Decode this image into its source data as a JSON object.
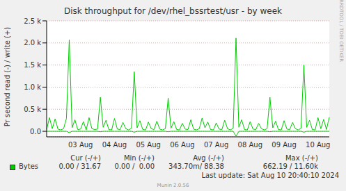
{
  "chart_data": {
    "type": "line",
    "title": "Disk throughput for /dev/rhel_bssrtest/usr - by week",
    "y_label": "Pr second read (-) / write (+)",
    "categories": [
      null,
      null,
      null,
      null,
      null,
      null,
      null,
      null,
      null,
      null,
      null,
      null,
      "03 Aug",
      null,
      null,
      null,
      null,
      null,
      null,
      null,
      null,
      null,
      null,
      null,
      "04 Aug",
      null,
      null,
      null,
      null,
      null,
      null,
      null,
      null,
      null,
      null,
      null,
      "05 Aug",
      null,
      null,
      null,
      null,
      null,
      null,
      null,
      null,
      null,
      null,
      null,
      "06 Aug",
      null,
      null,
      null,
      null,
      null,
      null,
      null,
      null,
      null,
      null,
      null,
      "07 Aug",
      null,
      null,
      null,
      null,
      null,
      null,
      null,
      null,
      null,
      null,
      null,
      "08 Aug",
      null,
      null,
      null,
      null,
      null,
      null,
      null,
      null,
      null,
      null,
      null,
      "09 Aug",
      null,
      null,
      null,
      null,
      null,
      null,
      null,
      null,
      null,
      null,
      null,
      "10 Aug",
      null,
      null,
      null,
      null
    ],
    "series": [
      {
        "name": "Bytes",
        "color": "#00cc00",
        "values": [
          40,
          310,
          60,
          280,
          50,
          30,
          60,
          290,
          2070,
          80,
          260,
          40,
          50,
          220,
          30,
          310,
          60,
          40,
          50,
          770,
          90,
          250,
          40,
          30,
          290,
          50,
          40,
          200,
          60,
          30,
          70,
          1350,
          80,
          240,
          40,
          30,
          210,
          60,
          40,
          230,
          50,
          30,
          60,
          750,
          70,
          220,
          40,
          30,
          180,
          50,
          40,
          260,
          50,
          30,
          60,
          300,
          80,
          210,
          40,
          30,
          190,
          50,
          40,
          250,
          60,
          30,
          70,
          2110,
          90,
          260,
          40,
          30,
          220,
          50,
          40,
          180,
          60,
          30,
          60,
          770,
          80,
          230,
          40,
          30,
          240,
          50,
          40,
          200,
          60,
          30,
          70,
          1500,
          90,
          250,
          40,
          30,
          310,
          60,
          270,
          40,
          320
        ],
        "read": [
          0,
          0,
          0,
          0,
          0,
          0,
          0,
          0,
          -30,
          0,
          0,
          0,
          0,
          0,
          0,
          0,
          0,
          0,
          0,
          -10,
          0,
          0,
          0,
          0,
          0,
          0,
          0,
          0,
          0,
          0,
          0,
          -20,
          0,
          0,
          0,
          0,
          0,
          0,
          0,
          0,
          0,
          0,
          0,
          -10,
          0,
          0,
          0,
          0,
          0,
          0,
          0,
          0,
          0,
          0,
          0,
          0,
          0,
          0,
          0,
          0,
          0,
          0,
          0,
          0,
          0,
          0,
          0,
          -110,
          0,
          0,
          0,
          0,
          0,
          0,
          0,
          0,
          0,
          0,
          0,
          -10,
          0,
          0,
          0,
          0,
          0,
          0,
          0,
          0,
          0,
          0,
          0,
          -20,
          0,
          0,
          0,
          0,
          0,
          0,
          0,
          0,
          0
        ]
      }
    ],
    "ylim": [
      -125,
      2500
    ],
    "yticks": [
      {
        "value": 0,
        "label": "0.0"
      },
      {
        "value": 500,
        "label": "0.5 k"
      },
      {
        "value": 1000,
        "label": "1.0 k"
      },
      {
        "value": 1500,
        "label": "1.5 k"
      },
      {
        "value": 2000,
        "label": "2.0 k"
      },
      {
        "value": 2500,
        "label": "2.5 k"
      }
    ],
    "grid": true,
    "stats": {
      "headers": [
        "Cur (-/+)",
        "Min (-/+)",
        "Avg (-/+)",
        "Max (-/+)"
      ],
      "rows": [
        {
          "label": "Bytes",
          "color": "#00cc00",
          "values": [
            "0.00 / 31.67",
            "0.00 /  0.00",
            "343.70m/ 88.38",
            "662.19 / 11.60k"
          ]
        }
      ]
    },
    "last_update": "Last update: Sat Aug 10 20:40:10 2024",
    "version": "Munin 2.0.56",
    "side_text": "RRDTOOL / TOBI OETIKER"
  }
}
